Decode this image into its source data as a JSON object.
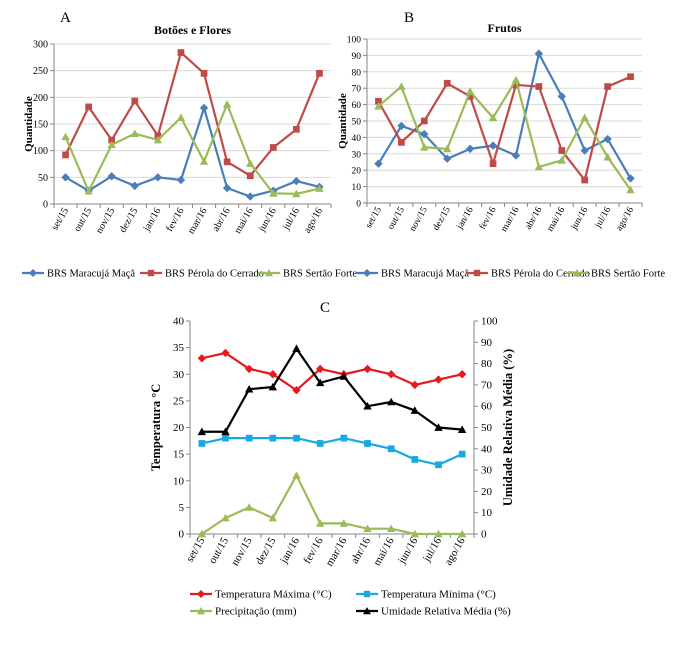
{
  "months": [
    "set/15",
    "out/15",
    "nov/15",
    "dez/15",
    "jan/16",
    "fev/16",
    "mar/16",
    "abr/16",
    "mai/16",
    "jun/16",
    "jul/16",
    "ago/16"
  ],
  "colors": {
    "blue": "#4A7EBB",
    "red": "#BE4B48",
    "green": "#9BBB59",
    "tmax": "#E41A1C",
    "tmin": "#16A9E2",
    "precip": "#9BBB59",
    "humid": "#000000",
    "grid": "#D9D9D9",
    "axis": "#868686"
  },
  "chart_data": [
    {
      "type": "line",
      "panel_label": "A",
      "title": "Botões e Flores",
      "ylabel": "Quantidade",
      "ylim": [
        0,
        300
      ],
      "yticks": [
        "0",
        "50",
        "100",
        "150",
        "200",
        "250",
        "300"
      ],
      "grid": true,
      "legend": "bottom",
      "series": [
        {
          "name": "BRS Maracujá Maçã",
          "marker": "diamond",
          "values": [
            50,
            25,
            52,
            34,
            50,
            45,
            180,
            30,
            14,
            25,
            43,
            32
          ]
        },
        {
          "name": "BRS Pérola do Cerrado",
          "marker": "square",
          "values": [
            92,
            182,
            120,
            193,
            128,
            284,
            245,
            79,
            53,
            106,
            140,
            245
          ]
        },
        {
          "name": "BRS Sertão Forte",
          "marker": "triangle",
          "values": [
            126,
            24,
            111,
            132,
            120,
            162,
            80,
            187,
            76,
            20,
            19,
            29
          ]
        }
      ]
    },
    {
      "type": "line",
      "panel_label": "B",
      "title": "Frutos",
      "ylabel": "Quantidade",
      "ylim": [
        0,
        100
      ],
      "yticks": [
        "0",
        "10",
        "20",
        "30",
        "40",
        "50",
        "60",
        "70",
        "80",
        "90",
        "100"
      ],
      "grid": true,
      "legend": "bottom",
      "series": [
        {
          "name": "BRS Maracujá Maçã",
          "marker": "diamond",
          "values": [
            24,
            47,
            42,
            27,
            33,
            35,
            29,
            91,
            65,
            32,
            39,
            15
          ]
        },
        {
          "name": "BRS Pérola do Cerrado",
          "marker": "square",
          "values": [
            62,
            37,
            50,
            73,
            65,
            24,
            72,
            71,
            32,
            14,
            71,
            77
          ]
        },
        {
          "name": "BRS Sertão Forte",
          "marker": "triangle",
          "values": [
            59,
            71,
            34,
            33,
            68,
            52,
            75,
            22,
            26,
            52,
            28,
            8
          ]
        }
      ]
    },
    {
      "type": "line",
      "panel_label": "C",
      "ylabel": "Temperatura °C",
      "ylabel_right": "Umidade Relativa Média (%)",
      "ylim": [
        0,
        40
      ],
      "ylim_right": [
        0,
        100
      ],
      "yticks": [
        "0",
        "5",
        "10",
        "15",
        "20",
        "25",
        "30",
        "35",
        "40"
      ],
      "yticks_right": [
        "0",
        "10",
        "20",
        "30",
        "40",
        "50",
        "60",
        "70",
        "80",
        "90",
        "100"
      ],
      "grid": false,
      "legend": "bottom",
      "series": [
        {
          "name": "Temperatura Máxima (°C)",
          "marker": "diamond",
          "axis": "left",
          "values": [
            33,
            34,
            31,
            30,
            27,
            31,
            30,
            31,
            30,
            28,
            29,
            30
          ]
        },
        {
          "name": "Temperatura Mínima (°C)",
          "marker": "square",
          "axis": "left",
          "values": [
            17,
            18,
            18,
            18,
            18,
            17,
            18,
            17,
            16,
            14,
            13,
            15
          ]
        },
        {
          "name": "Precipitação (mm)",
          "marker": "triangle",
          "axis": "left",
          "values": [
            0,
            3,
            5,
            3,
            11,
            2,
            2,
            1,
            1,
            0,
            0,
            0
          ]
        },
        {
          "name": "Umidade Relativa Média (%)",
          "marker": "triangle",
          "axis": "right",
          "values": [
            48,
            48,
            68,
            69,
            87,
            71,
            74,
            60,
            62,
            58,
            50,
            49
          ]
        }
      ]
    }
  ]
}
